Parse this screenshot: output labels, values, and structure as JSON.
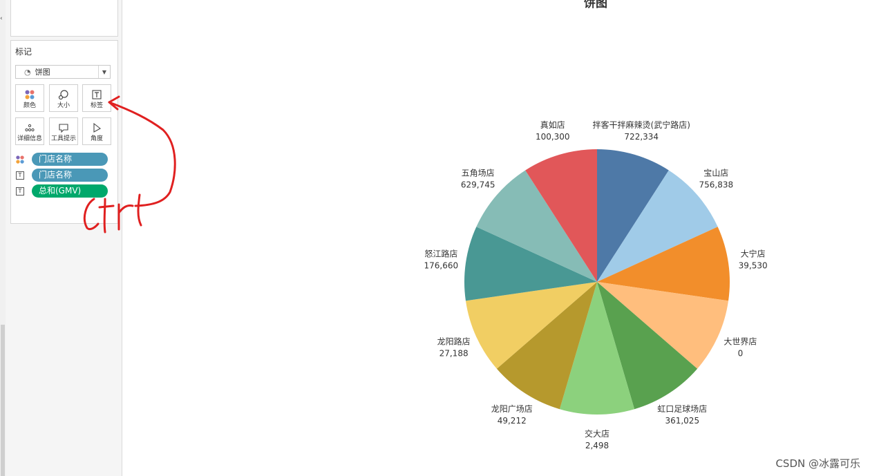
{
  "chart_data": {
    "type": "pie",
    "title": "饼图",
    "slices": [
      {
        "label": "拌客干拌麻辣烫(武宁路店)",
        "value": 722334,
        "display": "722,334",
        "color": "#4e79a7"
      },
      {
        "label": "宝山店",
        "value": 756838,
        "display": "756,838",
        "color": "#a0cbe8"
      },
      {
        "label": "大宁店",
        "value": 39530,
        "display": "39,530",
        "color": "#f28e2b"
      },
      {
        "label": "大世界店",
        "value": 0,
        "display": "0",
        "color": "#ffbe7d"
      },
      {
        "label": "虹口足球场店",
        "value": 361025,
        "display": "361,025",
        "color": "#59a14f"
      },
      {
        "label": "交大店",
        "value": 2498,
        "display": "2,498",
        "color": "#8cd17d"
      },
      {
        "label": "龙阳广场店",
        "value": 49212,
        "display": "49,212",
        "color": "#b6992d"
      },
      {
        "label": "龙阳路店",
        "value": 27188,
        "display": "27,188",
        "color": "#f1ce63"
      },
      {
        "label": "怒江路店",
        "value": 176660,
        "display": "176,660",
        "color": "#499894"
      },
      {
        "label": "五角场店",
        "value": 629745,
        "display": "629,745",
        "color": "#86bcb6"
      },
      {
        "label": "真如店",
        "value": 100300,
        "display": "100,300",
        "color": "#e15759"
      }
    ]
  },
  "panel": {
    "marks_title": "标记",
    "mark_type": "饼图",
    "buttons": {
      "color": "颜色",
      "size": "大小",
      "label": "标签",
      "detail": "详细信息",
      "tooltip": "工具提示",
      "angle": "角度"
    },
    "pills": [
      {
        "text": "门店名称",
        "color": "#4a98b7"
      },
      {
        "text": "门店名称",
        "color": "#4a98b7"
      },
      {
        "text": "总和(GMV)",
        "color": "#00a86b"
      }
    ]
  },
  "annotation": {
    "text": "ctrl",
    "color": "#e02020"
  },
  "watermark": "CSDN @冰露可乐"
}
